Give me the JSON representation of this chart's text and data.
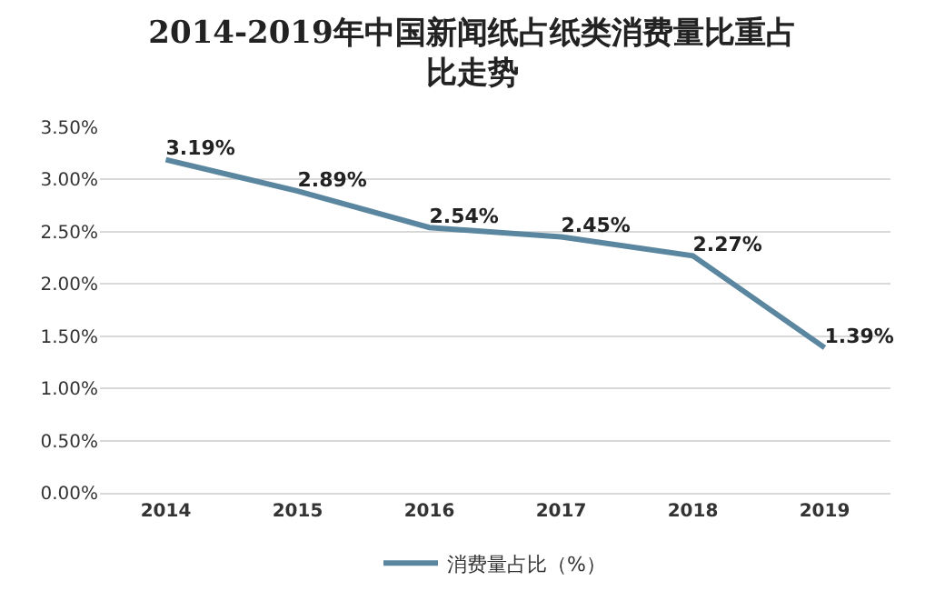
{
  "chart_data": {
    "type": "line",
    "title": "2014-2019年中国新闻纸占纸类消费量比重占比走势",
    "categories": [
      "2014",
      "2015",
      "2016",
      "2017",
      "2018",
      "2019"
    ],
    "series": [
      {
        "name": "消费量占比（%）",
        "color": "#5b86a0",
        "values": [
          3.19,
          2.89,
          2.54,
          2.45,
          2.27,
          1.39
        ],
        "value_labels": [
          "3.19%",
          "2.89%",
          "2.54%",
          "2.45%",
          "2.27%",
          "1.39%"
        ]
      }
    ],
    "ylim": [
      0,
      3.5
    ],
    "yticks": [
      {
        "value": 0,
        "label": "0.00%"
      },
      {
        "value": 0.5,
        "label": "0.50%"
      },
      {
        "value": 1,
        "label": "1.00%"
      },
      {
        "value": 1.5,
        "label": "1.50%"
      },
      {
        "value": 2,
        "label": "2.00%"
      },
      {
        "value": 2.5,
        "label": "2.50%"
      },
      {
        "value": 3,
        "label": "3.00%"
      },
      {
        "value": 3.5,
        "label": "3.50%"
      }
    ],
    "grid": "y",
    "legend": "bottom",
    "marker": "none",
    "line_style": "solid"
  }
}
